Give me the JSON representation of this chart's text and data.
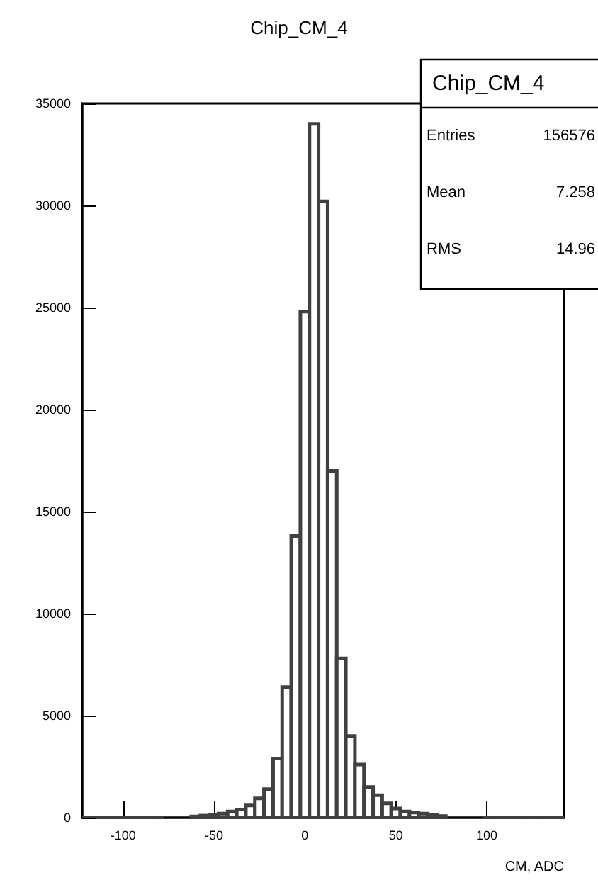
{
  "chart_data": {
    "type": "histogram",
    "title": "Chip_CM_4",
    "xlabel": "CM, ADC",
    "bins": [
      -122.5,
      -117.5,
      -112.5,
      -107.5,
      -102.5,
      -97.5,
      -92.5,
      -87.5,
      -82.5,
      -77.5,
      -72.5,
      -67.5,
      -62.5,
      -57.5,
      -52.5,
      -47.5,
      -42.5,
      -37.5,
      -32.5,
      -27.5,
      -22.5,
      -17.5,
      -12.5,
      -7.5,
      -2.5,
      2.5,
      7.5,
      12.5,
      17.5,
      22.5,
      27.5,
      32.5,
      37.5,
      42.5,
      47.5,
      52.5,
      57.5,
      62.5,
      67.5,
      72.5,
      77.5,
      82.5,
      87.5,
      92.5,
      97.5,
      102.5,
      107.5,
      112.5,
      117.5,
      122.5,
      127.5,
      132.5,
      137.5,
      142.5
    ],
    "values": [
      0,
      0,
      0,
      0,
      0,
      0,
      0,
      0,
      0,
      null,
      null,
      null,
      60,
      100,
      150,
      200,
      300,
      400,
      600,
      950,
      1400,
      2900,
      6400,
      13800,
      24800,
      34000,
      30200,
      17000,
      7800,
      4000,
      2600,
      1500,
      1100,
      700,
      450,
      300,
      250,
      200,
      150,
      80,
      null,
      null,
      null,
      null,
      0,
      0,
      0,
      0,
      0,
      0,
      0,
      0,
      0
    ],
    "color": "#404040",
    "xlim": [
      -122.5,
      142.5
    ],
    "xticks": [
      -100,
      -50,
      0,
      50,
      100
    ],
    "ylim": [
      0,
      35000
    ],
    "yticks": [
      0,
      5000,
      10000,
      15000,
      20000,
      25000,
      30000,
      35000
    ],
    "grid": false,
    "annotations": [
      "Chip_CM_4",
      "Entries",
      "156576",
      "Mean",
      "7.258",
      "RMS",
      "14.96"
    ]
  }
}
